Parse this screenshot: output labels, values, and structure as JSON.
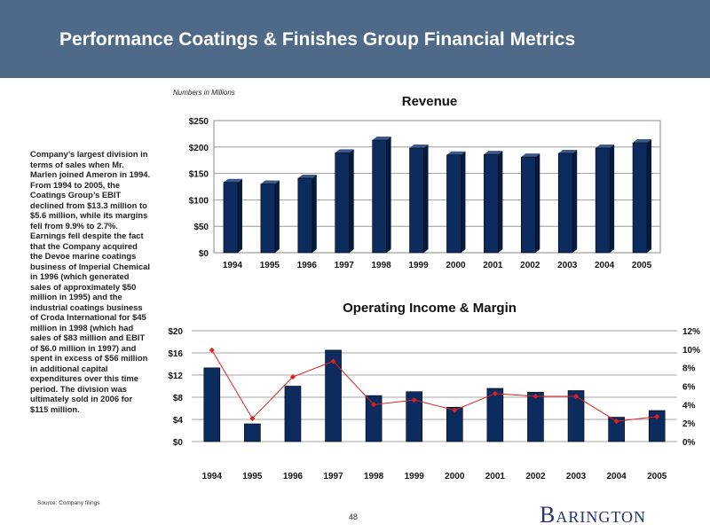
{
  "header": {
    "title": "Performance Coatings & Finishes Group Financial Metrics"
  },
  "note": "Numbers in Millions",
  "description": "Company’s largest division in terms of sales when Mr. Marlen joined Ameron in 1994. From 1994 to 2005, the Coatings Group’s EBIT declined from $13.3 million to $5.6 million, while its margins fell from 9.9% to 2.7%. Earnings fell despite the fact that the Company acquired the Devoe marine coatings business of Imperial Chemical in 1996 (which generated sales of approximately $50 million in 1995) and the industrial coatings business of Croda International for $45 million in 1998 (which had sales of $83 million and EBIT of $6.0 million in 1997) and spent in excess of $56 million in additional capital expenditures over this time period. The division was ultimately sold in 2006 for $115 million.",
  "footer": {
    "source": "Source:  Company filings",
    "page": "48",
    "logo_initial": "B",
    "logo_rest": "ARINGTON"
  },
  "colors": {
    "header": "#4f6a89",
    "bar": "#0c2b5e",
    "line": "#e02020",
    "logo": "#23346e"
  },
  "chart_data": [
    {
      "type": "bar",
      "title": "Revenue",
      "categories": [
        "1994",
        "1995",
        "1996",
        "1997",
        "1998",
        "1999",
        "2000",
        "2001",
        "2002",
        "2003",
        "2004",
        "2005"
      ],
      "values": [
        133,
        130,
        141,
        189,
        213,
        198,
        185,
        186,
        181,
        188,
        198,
        208
      ],
      "ylim": [
        0,
        250
      ],
      "yticks": [
        0,
        50,
        100,
        150,
        200,
        250
      ],
      "ytick_labels": [
        "$0",
        "$50",
        "$100",
        "$150",
        "$200",
        "$250"
      ],
      "grid": true
    },
    {
      "type": "bar+line",
      "title": "Operating Income & Margin",
      "categories": [
        "1994",
        "1995",
        "1996",
        "1997",
        "1998",
        "1999",
        "2000",
        "2001",
        "2002",
        "2003",
        "2004",
        "2005"
      ],
      "series": [
        {
          "name": "Operating Income",
          "axis": "left",
          "values": [
            13.3,
            3.2,
            10.0,
            16.5,
            8.3,
            9.0,
            6.2,
            9.6,
            8.9,
            9.2,
            4.4,
            5.6
          ]
        },
        {
          "name": "Margin",
          "axis": "right",
          "values": [
            9.9,
            2.5,
            7.0,
            8.7,
            4.0,
            4.5,
            3.4,
            5.2,
            4.9,
            4.9,
            2.2,
            2.7
          ]
        }
      ],
      "ylim_left": [
        0,
        20
      ],
      "yticks_left": [
        0,
        4,
        8,
        12,
        16,
        20
      ],
      "ytick_labels_left": [
        "$0",
        "$4",
        "$8",
        "$12",
        "$16",
        "$20"
      ],
      "ylim_right": [
        0,
        12
      ],
      "yticks_right": [
        0,
        2,
        4,
        6,
        8,
        10,
        12
      ],
      "ytick_labels_right": [
        "0%",
        "2%",
        "4%",
        "6%",
        "8%",
        "10%",
        "12%"
      ],
      "grid": true
    }
  ]
}
